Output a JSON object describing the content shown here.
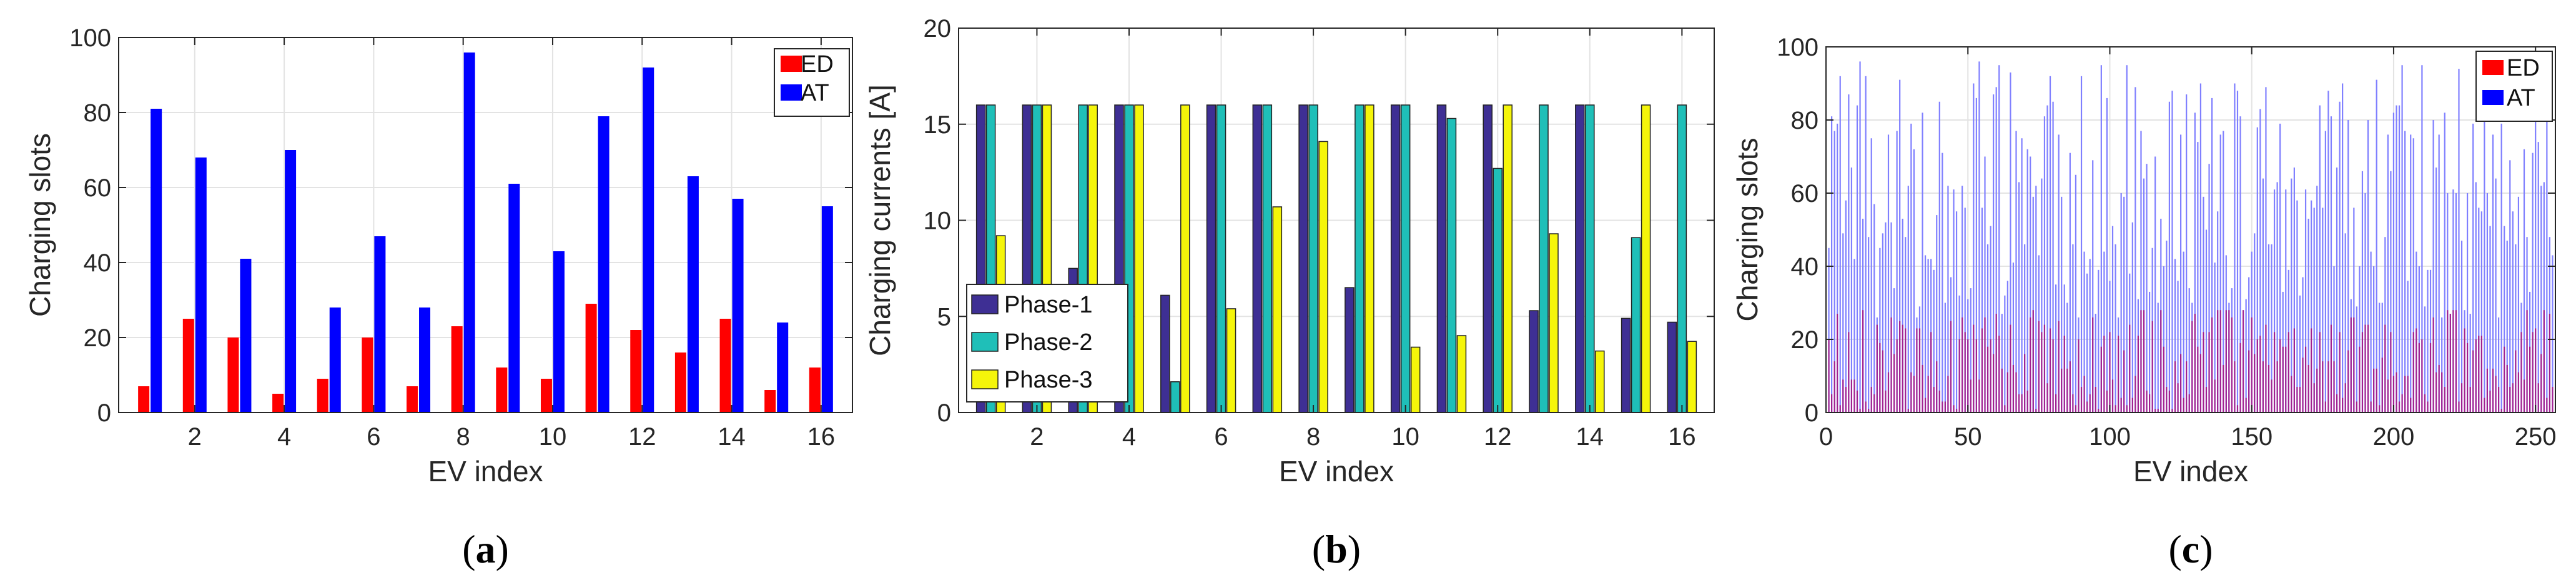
{
  "chart_data": [
    {
      "type": "bar",
      "panel_label_open": "(",
      "panel_label_letter": "a",
      "panel_label_close": ")",
      "xlabel": "EV index",
      "ylabel": "Charging slots",
      "xlim": [
        0.3,
        16.7
      ],
      "ylim": [
        0,
        100
      ],
      "xticks": [
        2,
        4,
        6,
        8,
        10,
        12,
        14,
        16
      ],
      "yticks": [
        0,
        20,
        40,
        60,
        80,
        100
      ],
      "grid": true,
      "legend_position": "top-right",
      "categories": [
        1,
        2,
        3,
        4,
        5,
        6,
        7,
        8,
        9,
        10,
        11,
        12,
        13,
        14,
        15,
        16
      ],
      "series": [
        {
          "name": "ED",
          "color": "#ff0000",
          "values": [
            7,
            25,
            20,
            5,
            9,
            20,
            7,
            23,
            12,
            9,
            29,
            22,
            16,
            25,
            6,
            12
          ]
        },
        {
          "name": "AT",
          "color": "#0000ff",
          "values": [
            81,
            68,
            41,
            70,
            28,
            47,
            28,
            96,
            61,
            43,
            79,
            92,
            63,
            57,
            24,
            55
          ]
        }
      ]
    },
    {
      "type": "bar",
      "panel_label_open": "(",
      "panel_label_letter": "b",
      "panel_label_close": ")",
      "xlabel": "EV index",
      "ylabel": "Charging currents [A]",
      "xlim": [
        0.3,
        16.7
      ],
      "ylim": [
        0,
        20
      ],
      "xticks": [
        2,
        4,
        6,
        8,
        10,
        12,
        14,
        16
      ],
      "yticks": [
        0,
        5,
        10,
        15,
        20
      ],
      "grid": true,
      "legend_position": "bottom-left",
      "categories": [
        1,
        2,
        3,
        4,
        5,
        6,
        7,
        8,
        9,
        10,
        11,
        12,
        13,
        14,
        15,
        16
      ],
      "series": [
        {
          "name": "Phase-1",
          "color": "#3e2f94",
          "values": [
            16,
            16,
            7.5,
            16,
            6.1,
            16,
            16,
            16,
            6.5,
            16,
            16,
            16,
            5.3,
            16,
            4.9,
            4.7
          ]
        },
        {
          "name": "Phase-2",
          "color": "#1fbfb8",
          "values": [
            16,
            16,
            16,
            16,
            1.6,
            16,
            16,
            16,
            16,
            16,
            15.3,
            12.7,
            16,
            16,
            9.1,
            16
          ]
        },
        {
          "name": "Phase-3",
          "color": "#f5f50a",
          "values": [
            9.2,
            16,
            16,
            16,
            16,
            5.4,
            10.7,
            14.1,
            16,
            3.4,
            4,
            16,
            9.3,
            3.2,
            16,
            3.7
          ]
        }
      ]
    },
    {
      "type": "bar",
      "panel_label_open": "(",
      "panel_label_letter": "c",
      "panel_label_close": ")",
      "xlabel": "EV index",
      "ylabel": "Charging slots",
      "xlim": [
        0,
        257
      ],
      "ylim": [
        0,
        100
      ],
      "xticks": [
        0,
        50,
        100,
        150,
        200,
        250
      ],
      "yticks": [
        0,
        20,
        40,
        60,
        80,
        100
      ],
      "grid": true,
      "legend_position": "top-right",
      "n_points": 256,
      "series": [
        {
          "name": "ED",
          "color": "#ff0000",
          "values": [
            20,
            5,
            14,
            27,
            2,
            9,
            7,
            22,
            9,
            9,
            6,
            1,
            28,
            3,
            1,
            7,
            5,
            24,
            19,
            17,
            6,
            11,
            26,
            16,
            20,
            25,
            24,
            23,
            1,
            11,
            10,
            23,
            23,
            13,
            4,
            10,
            22,
            7,
            14,
            6,
            3,
            3,
            10,
            25,
            2,
            1,
            20,
            26,
            22,
            20,
            9,
            24,
            20,
            9,
            23,
            26,
            18,
            20,
            16,
            27,
            21,
            12,
            2,
            11,
            24,
            13,
            11,
            5,
            5,
            16,
            6,
            26,
            28,
            1,
            25,
            22,
            24,
            8,
            23,
            20,
            5,
            25,
            12,
            21,
            12,
            14,
            5,
            2,
            20,
            7,
            10,
            3,
            5,
            26,
            7,
            1,
            18,
            21,
            6,
            22,
            9,
            2,
            21,
            4,
            17,
            2,
            24,
            4,
            10,
            21,
            28,
            28,
            6,
            5,
            25,
            1,
            1,
            28,
            18,
            7,
            6,
            1,
            14,
            8,
            16,
            4,
            14,
            5,
            25,
            27,
            18,
            16,
            22,
            7,
            22,
            26,
            9,
            28,
            28,
            13,
            28,
            28,
            26,
            14,
            2,
            19,
            28,
            4,
            17,
            26,
            16,
            20,
            21,
            14,
            24,
            13,
            9,
            22,
            14,
            20,
            18,
            18,
            22,
            10,
            23,
            7,
            7,
            15,
            18,
            13,
            23,
            8,
            12,
            22,
            14,
            3,
            14,
            24,
            14,
            5,
            22,
            4,
            8,
            17,
            26,
            26,
            3,
            18,
            22,
            24,
            24,
            3,
            12,
            12,
            2,
            15,
            24,
            9,
            22,
            10,
            11,
            3,
            5,
            10,
            10,
            4,
            22,
            23,
            19,
            20,
            5,
            3,
            19,
            26,
            11,
            13,
            11,
            7,
            28,
            27,
            28,
            28,
            3,
            8,
            23,
            19,
            7,
            17,
            20,
            21,
            21,
            4,
            12,
            6,
            12,
            10,
            7,
            1,
            18,
            13,
            7,
            8,
            17,
            11,
            22,
            9,
            28,
            18,
            22,
            23,
            8,
            16,
            28,
            4,
            27,
            7
          ]
        },
        {
          "name": "AT",
          "color": "#0000ff",
          "values": [
            45,
            81,
            77,
            79,
            92,
            49,
            58,
            87,
            67,
            42,
            84,
            96,
            53,
            92,
            48,
            75,
            57,
            26,
            45,
            49,
            52,
            76,
            52,
            34,
            77,
            91,
            53,
            48,
            62,
            79,
            72,
            26,
            29,
            82,
            43,
            42,
            42,
            39,
            54,
            85,
            71,
            30,
            62,
            37,
            61,
            55,
            32,
            62,
            56,
            31,
            34,
            90,
            86,
            96,
            56,
            70,
            46,
            51,
            87,
            89,
            95,
            27,
            32,
            36,
            93,
            41,
            77,
            63,
            75,
            46,
            72,
            70,
            59,
            62,
            43,
            64,
            81,
            84,
            92,
            85,
            35,
            76,
            59,
            35,
            30,
            71,
            46,
            65,
            26,
            92,
            44,
            38,
            42,
            69,
            27,
            39,
            95,
            44,
            86,
            36,
            51,
            46,
            26,
            60,
            59,
            95,
            38,
            52,
            89,
            31,
            77,
            64,
            68,
            33,
            45,
            70,
            30,
            53,
            40,
            47,
            85,
            88,
            42,
            36,
            76,
            44,
            87,
            34,
            30,
            82,
            74,
            90,
            59,
            50,
            68,
            86,
            41,
            55,
            76,
            77,
            43,
            30,
            34,
            90,
            88,
            81,
            28,
            31,
            37,
            44,
            49,
            78,
            83,
            64,
            89,
            46,
            46,
            61,
            63,
            79,
            33,
            61,
            39,
            64,
            67,
            58,
            32,
            37,
            61,
            53,
            58,
            56,
            62,
            84,
            56,
            77,
            88,
            81,
            40,
            67,
            85,
            90,
            49,
            80,
            31,
            56,
            29,
            40,
            66,
            60,
            80,
            44,
            40,
            91,
            30,
            30,
            48,
            76,
            66,
            82,
            84,
            84,
            95,
            77,
            36,
            76,
            75,
            44,
            40,
            95,
            29,
            39,
            39,
            80,
            67,
            76,
            26,
            82,
            60,
            27,
            61,
            60,
            94,
            47,
            28,
            60,
            27,
            79,
            63,
            56,
            55,
            85,
            60,
            51,
            76,
            64,
            26,
            79,
            51,
            47,
            69,
            55,
            46,
            59,
            30,
            72,
            48,
            33,
            71,
            85,
            74,
            62,
            63,
            84,
            48,
            43
          ]
        }
      ]
    }
  ]
}
